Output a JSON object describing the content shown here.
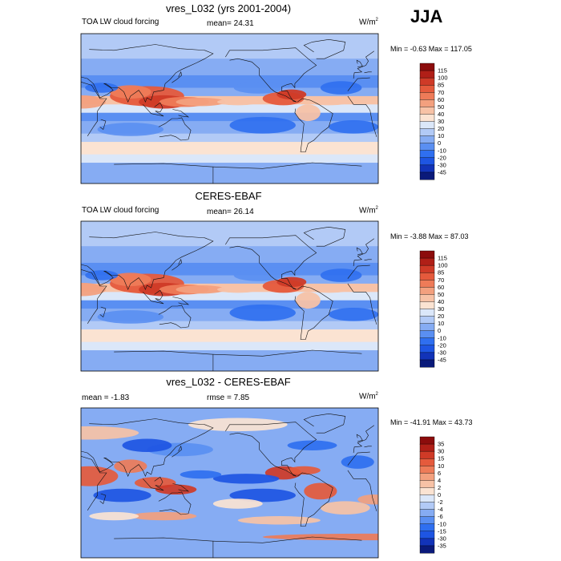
{
  "season": "JJA",
  "colors": {
    "scale": [
      "#0a1a7a",
      "#1233b8",
      "#1e55e3",
      "#2f6ff0",
      "#5a8ff2",
      "#86acf3",
      "#b2caf6",
      "#dbe7f9",
      "#fbe3d2",
      "#f7c2a6",
      "#f3a07e",
      "#ee7b58",
      "#e55a3c",
      "#cf3a27",
      "#b01f17",
      "#8c0c0c"
    ],
    "ocean": "#9fbef3",
    "land": "#b7cdf7",
    "coast": "#111111"
  },
  "chart_data": [
    {
      "type": "heatmap",
      "title": "vres_L032 (yrs 2001-2004)",
      "left_label": "TOA LW cloud forcing",
      "stat_text": "mean=  24.31",
      "units": "W/m",
      "units_sup": "2",
      "min_max": "Min =  -0.63 Max = 117.05",
      "colorbar_levels": [
        "115",
        "100",
        "85",
        "70",
        "60",
        "50",
        "40",
        "30",
        "20",
        "10",
        "0",
        "-10",
        "-20",
        "-30",
        "-45"
      ]
    },
    {
      "type": "heatmap",
      "title": "CERES-EBAF",
      "left_label": "TOA LW cloud forcing",
      "stat_text": "mean=  26.14",
      "units": "W/m",
      "units_sup": "2",
      "min_max": "Min =  -3.88 Max =  87.03",
      "colorbar_levels": [
        "115",
        "100",
        "85",
        "70",
        "60",
        "50",
        "40",
        "30",
        "20",
        "10",
        "0",
        "-10",
        "-20",
        "-30",
        "-45"
      ]
    },
    {
      "type": "heatmap",
      "title": "vres_L032 - CERES-EBAF",
      "left_label": "mean =  -1.83",
      "stat_text": "rmse =   7.85",
      "units": "W/m",
      "units_sup": "2",
      "min_max": "Min = -41.91 Max =  43.73",
      "colorbar_levels": [
        "35",
        "30",
        "15",
        "10",
        "6",
        "4",
        "2",
        "0",
        "-2",
        "-4",
        "-6",
        "-10",
        "-15",
        "-30",
        "-35"
      ]
    }
  ]
}
